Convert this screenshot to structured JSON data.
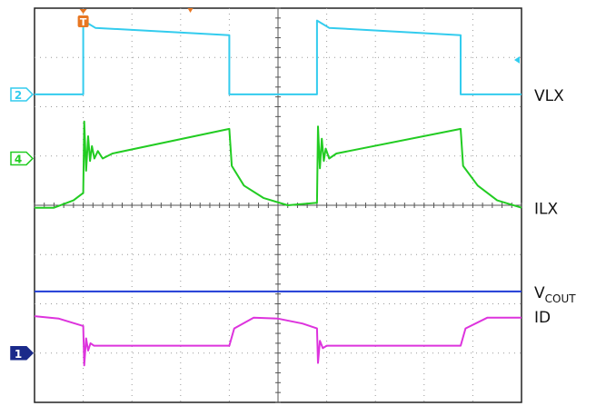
{
  "chart_data": {
    "type": "line",
    "title": "",
    "xlabel": "",
    "ylabel": "",
    "grid": true,
    "divisions": {
      "x": 10,
      "y": 8
    },
    "xlim": [
      0,
      10
    ],
    "ylim": [
      0,
      8
    ],
    "trigger_marker": "T",
    "ground_markers": [
      {
        "channel": "2",
        "level": 6.25,
        "color": "#33ccee"
      },
      {
        "channel": "4",
        "level": 4.95,
        "color": "#22cc22"
      },
      {
        "channel": "1",
        "level": 1.0,
        "color": "#1a2a8a"
      }
    ],
    "series": [
      {
        "name": "VLX",
        "color": "#33ccee",
        "label_parts": [
          "VLX"
        ],
        "points": [
          [
            0,
            6.25
          ],
          [
            1.0,
            6.25
          ],
          [
            1.0,
            7.75
          ],
          [
            1.25,
            7.6
          ],
          [
            4.0,
            7.45
          ],
          [
            4.0,
            6.25
          ],
          [
            5.8,
            6.25
          ],
          [
            5.8,
            7.75
          ],
          [
            6.05,
            7.6
          ],
          [
            8.75,
            7.45
          ],
          [
            8.75,
            6.25
          ],
          [
            10,
            6.25
          ]
        ]
      },
      {
        "name": "ILX",
        "color": "#22cc22",
        "label_parts": [
          "ILX"
        ],
        "points": [
          [
            0,
            3.95
          ],
          [
            0.4,
            3.95
          ],
          [
            0.8,
            4.1
          ],
          [
            1.0,
            4.25
          ],
          [
            1.02,
            5.7
          ],
          [
            1.06,
            4.7
          ],
          [
            1.1,
            5.4
          ],
          [
            1.14,
            4.9
          ],
          [
            1.18,
            5.2
          ],
          [
            1.23,
            4.95
          ],
          [
            1.3,
            5.1
          ],
          [
            1.4,
            4.95
          ],
          [
            1.6,
            5.05
          ],
          [
            4.0,
            5.55
          ],
          [
            4.05,
            4.8
          ],
          [
            4.3,
            4.4
          ],
          [
            4.7,
            4.15
          ],
          [
            5.2,
            4.0
          ],
          [
            5.8,
            4.05
          ],
          [
            5.82,
            5.6
          ],
          [
            5.86,
            4.75
          ],
          [
            5.9,
            5.35
          ],
          [
            5.94,
            4.9
          ],
          [
            5.98,
            5.15
          ],
          [
            6.05,
            4.95
          ],
          [
            6.2,
            5.05
          ],
          [
            8.75,
            5.55
          ],
          [
            8.8,
            4.8
          ],
          [
            9.1,
            4.4
          ],
          [
            9.5,
            4.1
          ],
          [
            10,
            3.95
          ]
        ]
      },
      {
        "name": "VCOUT",
        "color": "#1f3bd6",
        "label_parts": [
          "V",
          "COUT"
        ],
        "points": [
          [
            0,
            2.25
          ],
          [
            10,
            2.25
          ]
        ]
      },
      {
        "name": "ID",
        "color": "#dd33dd",
        "label_parts": [
          "ID"
        ],
        "points": [
          [
            0,
            1.75
          ],
          [
            0.5,
            1.7
          ],
          [
            1.0,
            1.55
          ],
          [
            1.02,
            0.75
          ],
          [
            1.06,
            1.3
          ],
          [
            1.1,
            1.05
          ],
          [
            1.15,
            1.2
          ],
          [
            1.22,
            1.15
          ],
          [
            4.0,
            1.15
          ],
          [
            4.1,
            1.5
          ],
          [
            4.5,
            1.72
          ],
          [
            5.0,
            1.7
          ],
          [
            5.5,
            1.6
          ],
          [
            5.8,
            1.5
          ],
          [
            5.82,
            0.8
          ],
          [
            5.86,
            1.25
          ],
          [
            5.92,
            1.1
          ],
          [
            6.0,
            1.15
          ],
          [
            8.75,
            1.15
          ],
          [
            8.85,
            1.5
          ],
          [
            9.3,
            1.72
          ],
          [
            10,
            1.72
          ]
        ]
      }
    ]
  }
}
